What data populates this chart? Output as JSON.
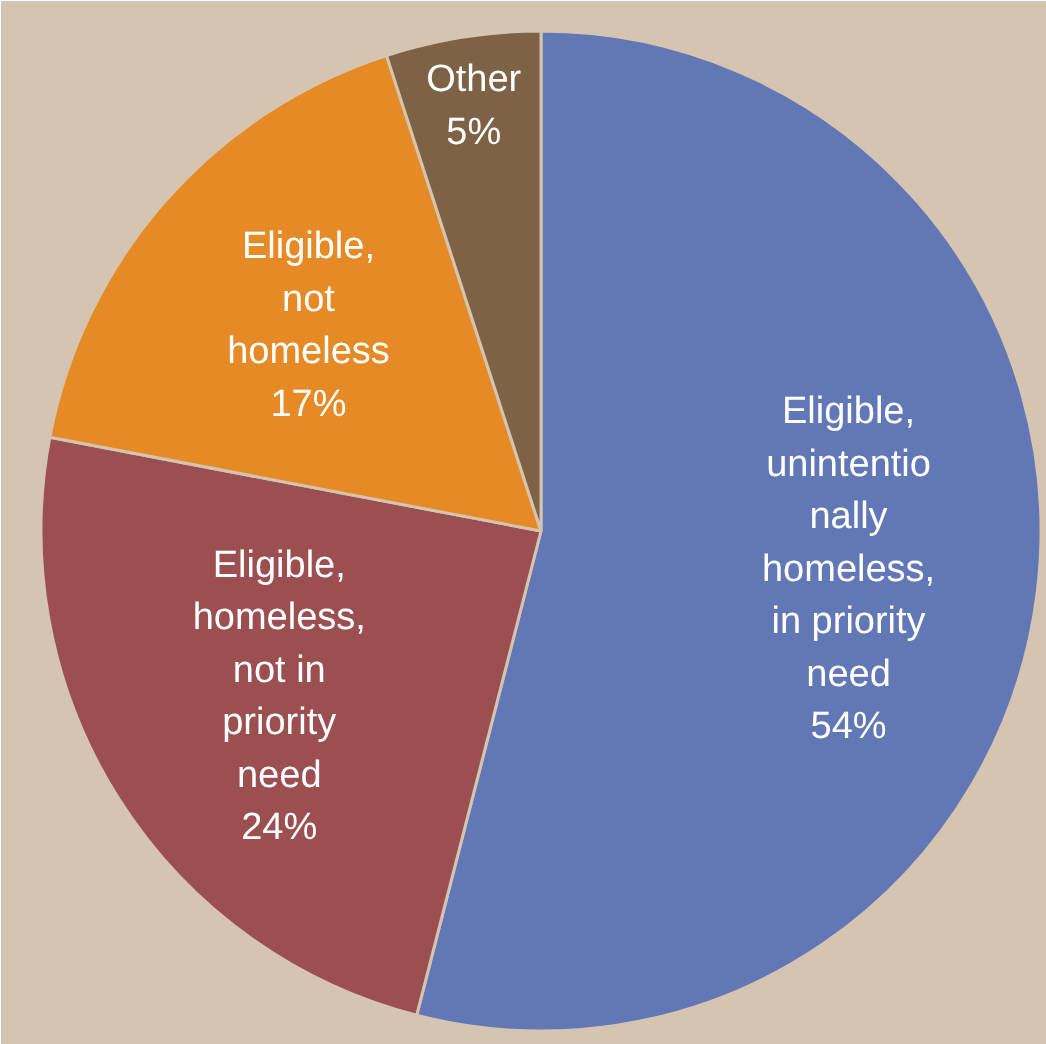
{
  "chart_data": {
    "type": "pie",
    "categories": [
      "Eligible,\nunintentio\nnally\nhomeless,\nin priority\nneed",
      "Eligible,\nhomeless,\nnot in\npriority\nneed",
      "Eligible,\nnot\nhomeless",
      "Other"
    ],
    "values": [
      54,
      24,
      17,
      5
    ],
    "value_labels": [
      "54%",
      "24%",
      "17%",
      "5%"
    ],
    "colors": [
      "#6177b6",
      "#9c4f50",
      "#e58a25",
      "#7e6246"
    ]
  }
}
